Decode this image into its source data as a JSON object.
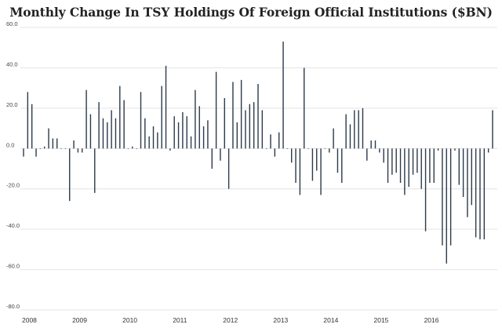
{
  "chart_data": {
    "type": "bar",
    "title": "Monthly Change In TSY Holdings Of Foreign Official Institutions ($BN)",
    "xlabel": "",
    "ylabel": "",
    "ylim": [
      -80,
      60
    ],
    "yticks": [
      60,
      40,
      20,
      0,
      -20,
      -40,
      -60,
      -80
    ],
    "ytick_labels": [
      "60.0",
      "40.0",
      "20.0",
      "0.0",
      "-20.0",
      "-40.0",
      "-60.0",
      "-80.0"
    ],
    "x_year_labels": [
      "2008",
      "2009",
      "2010",
      "2011",
      "2012",
      "2013",
      "2014",
      "2015",
      "2016"
    ],
    "grid": true,
    "bar_color": "#2b3a4a",
    "start": "2008-01",
    "values": [
      -4,
      28,
      22,
      -4,
      0,
      1,
      10,
      5,
      5,
      0,
      0,
      -26,
      4,
      -2,
      -2,
      29,
      17,
      -22,
      23,
      15,
      13,
      19,
      15,
      31,
      24,
      0,
      1,
      0,
      28,
      15,
      6,
      11,
      8,
      31,
      41,
      -1,
      16,
      13,
      18,
      16,
      6,
      29,
      21,
      11,
      14,
      -10,
      38,
      -6,
      25,
      -20,
      33,
      13,
      34,
      19,
      22,
      23,
      32,
      19,
      0,
      7,
      -4,
      8,
      53,
      0,
      -7,
      -17,
      -23,
      40,
      0,
      -16,
      -11,
      -23,
      0,
      -2,
      10,
      -12,
      -17,
      17,
      12,
      19,
      19,
      20,
      -6,
      4,
      4,
      -2,
      -7,
      -17,
      -13,
      -12,
      -17,
      -23,
      -19,
      -13,
      -12,
      -20,
      -41,
      -17,
      -17,
      -1,
      -48,
      -57,
      -48,
      -1,
      -18,
      -24,
      -34,
      -28,
      -44,
      -45,
      -45,
      -2,
      19
    ]
  }
}
